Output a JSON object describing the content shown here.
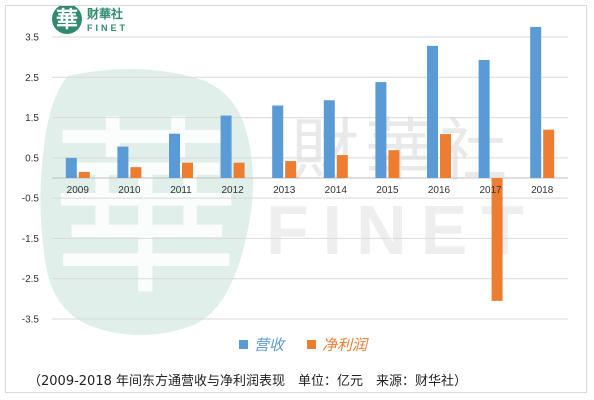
{
  "logo": {
    "mark": "華",
    "name": "财華社",
    "latin": "FINET"
  },
  "watermark": {
    "mark": "華",
    "name": "財華社",
    "latin": "FINET"
  },
  "caption": "（2009-2018 年间东方通营收与净利润表现　单位：亿元　来源：财华社）",
  "colors": {
    "revenue": "#5b9bd5",
    "profit": "#ed7d31",
    "grid": "#d9d9d9",
    "axis": "#bfbfbf",
    "logo_green": "#2e8b6f",
    "watermark_green": "#cfe5dd"
  },
  "chart_data": {
    "type": "bar",
    "categories": [
      "2009",
      "2010",
      "2011",
      "2012",
      "2013",
      "2014",
      "2015",
      "2016",
      "2017",
      "2018"
    ],
    "series": [
      {
        "name": "营收",
        "values": [
          0.5,
          0.78,
          1.1,
          1.55,
          1.8,
          1.93,
          2.38,
          3.28,
          2.93,
          3.75
        ]
      },
      {
        "name": "净利润",
        "values": [
          0.15,
          0.27,
          0.38,
          0.38,
          0.42,
          0.57,
          0.69,
          1.09,
          -3.05,
          1.2
        ]
      }
    ],
    "y_ticks": [
      "3.5",
      "2.5",
      "1.5",
      "0.5",
      "-0.5",
      "-1.5",
      "-2.5",
      "-3.5"
    ],
    "ylim": [
      -4.0,
      4.0
    ],
    "grid": true,
    "legend_position": "bottom",
    "title": "",
    "xlabel": "",
    "ylabel": ""
  }
}
